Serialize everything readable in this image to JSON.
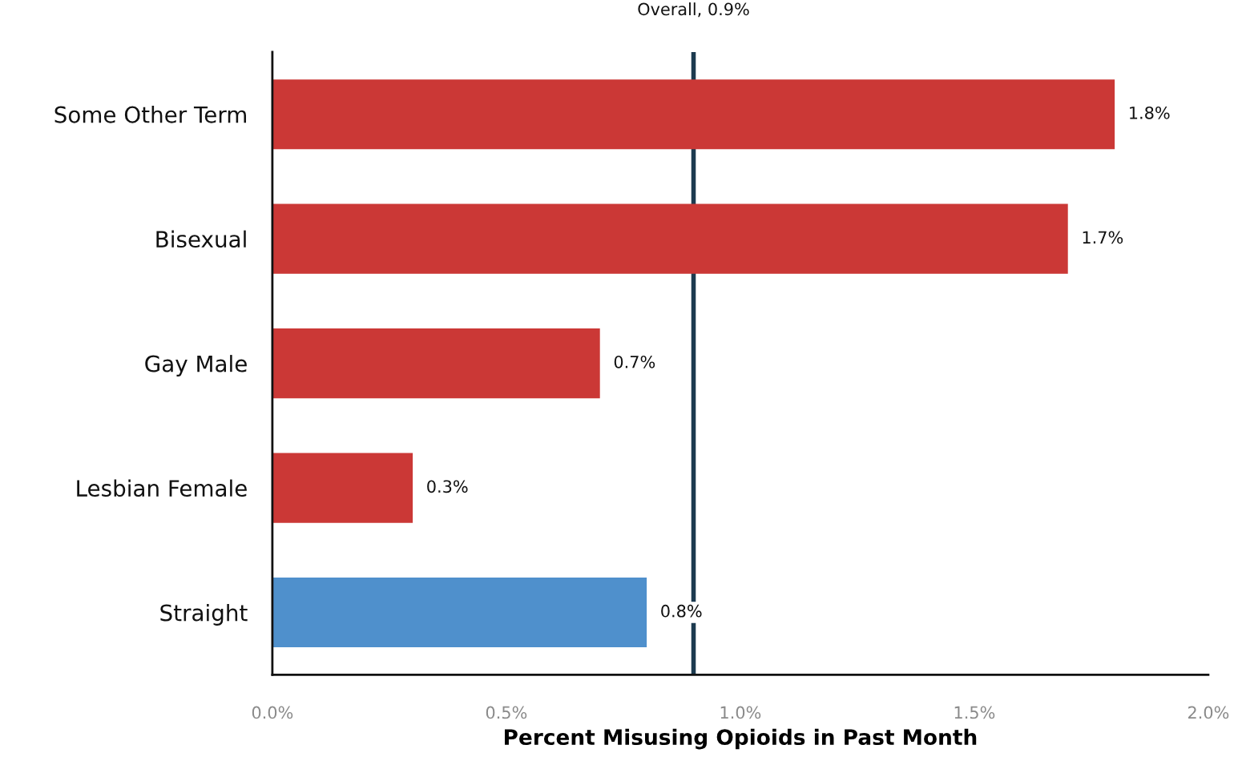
{
  "chart_data": {
    "type": "bar",
    "orientation": "horizontal",
    "categories": [
      "Some Other Term",
      "Bisexual",
      "Gay Male",
      "Lesbian Female",
      "Straight"
    ],
    "values": [
      1.8,
      1.7,
      0.7,
      0.3,
      0.8
    ],
    "colors": [
      "#cb3836",
      "#cb3836",
      "#cb3836",
      "#cb3836",
      "#4f90cc"
    ],
    "value_labels": [
      "1.8%",
      "1.7%",
      "0.7%",
      "0.3%",
      "0.8%"
    ],
    "xlabel": "Percent Misusing Opioids in Past Month",
    "xlim": [
      0,
      2
    ],
    "xticks": [
      {
        "value": 0,
        "label": "0.0%"
      },
      {
        "value": 0.5,
        "label": "0.5%"
      },
      {
        "value": 1,
        "label": "1.0%"
      },
      {
        "value": 1.5,
        "label": "1.5%"
      },
      {
        "value": 2,
        "label": "2.0%"
      }
    ],
    "ref_lines": [
      {
        "axis": "x",
        "value": 0.9,
        "label": "Overall, 0.9%",
        "color": "#1c3a4f"
      }
    ],
    "grid": false,
    "legend": false
  }
}
